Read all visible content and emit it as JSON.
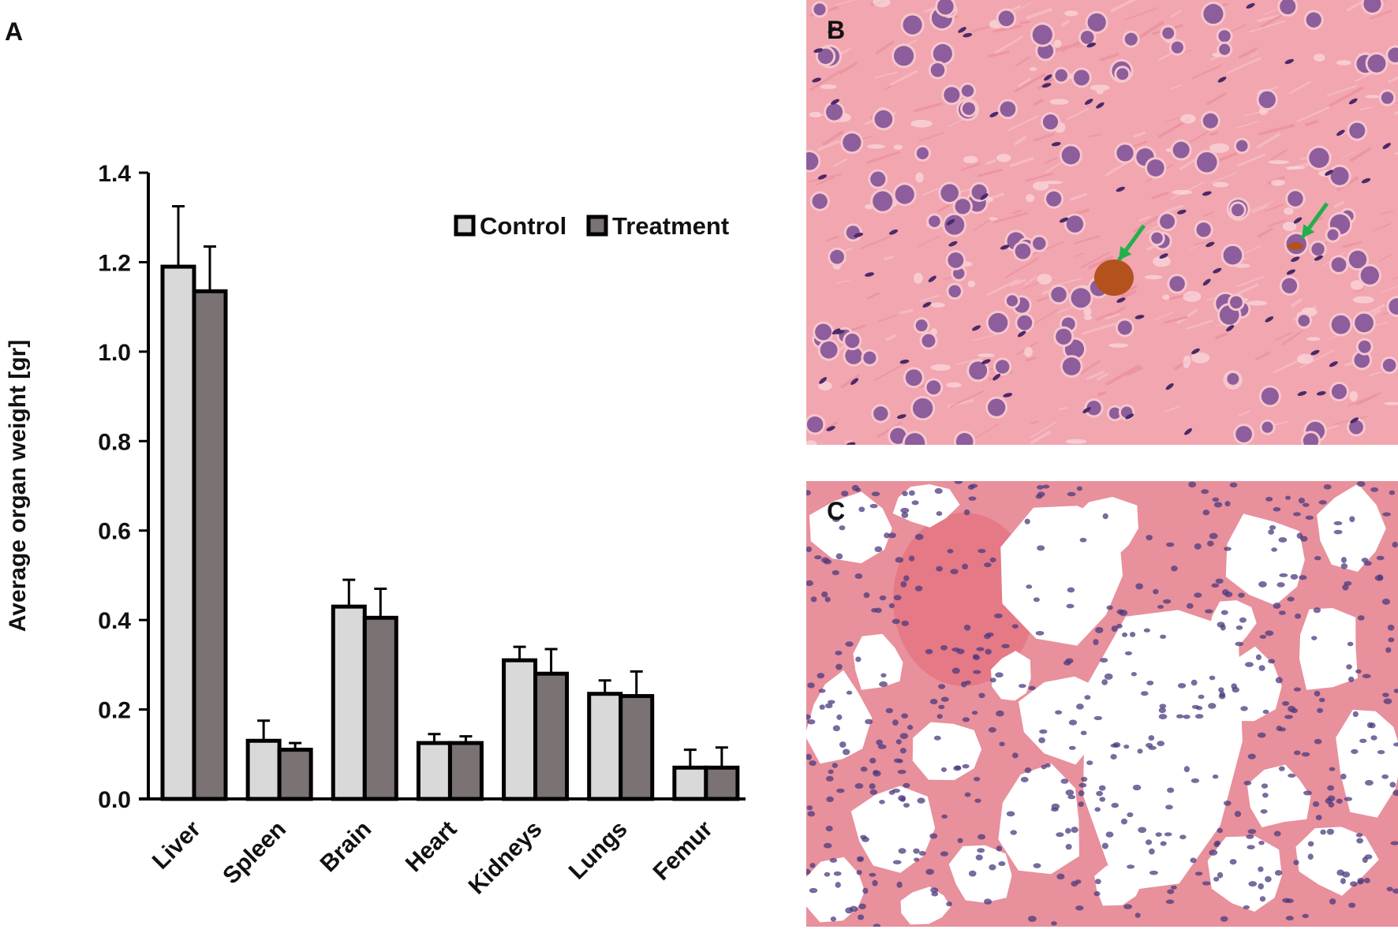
{
  "panels": {
    "a": "A",
    "b": "B",
    "c": "C"
  },
  "chart_data": {
    "type": "bar",
    "title": "",
    "xlabel": "",
    "ylabel": "Average organ weight [gr]",
    "ylim": [
      0,
      1.4
    ],
    "yticks": [
      "0.0",
      "0.2",
      "0.4",
      "0.6",
      "0.8",
      "1.0",
      "1.2",
      "1.4"
    ],
    "categories": [
      "Liver",
      "Spleen",
      "Brain",
      "Heart",
      "Kidneys",
      "Lungs",
      "Femur"
    ],
    "legend_position": "top-right",
    "grid": false,
    "series": [
      {
        "name": "Control",
        "color": "#d9d9d9",
        "values": [
          1.19,
          0.13,
          0.43,
          0.125,
          0.31,
          0.235,
          0.07
        ],
        "errors": [
          0.135,
          0.045,
          0.06,
          0.02,
          0.03,
          0.03,
          0.04
        ]
      },
      {
        "name": "Treatment",
        "color": "#7a7273",
        "values": [
          1.135,
          0.11,
          0.405,
          0.125,
          0.28,
          0.23,
          0.07
        ],
        "errors": [
          0.1,
          0.015,
          0.065,
          0.015,
          0.055,
          0.055,
          0.045
        ]
      }
    ]
  },
  "micrographs": {
    "b": {
      "tissue": "liver-section",
      "background": "#f1a6b0",
      "nucleus_color": "#7b4a93",
      "pigment_color": "#b4521e",
      "arrow_color": "#22b04b"
    },
    "c": {
      "tissue": "lung-section",
      "background": "#ffffff",
      "septum_color": "#e8909c",
      "nucleus_color": "#4b3a7e"
    }
  }
}
